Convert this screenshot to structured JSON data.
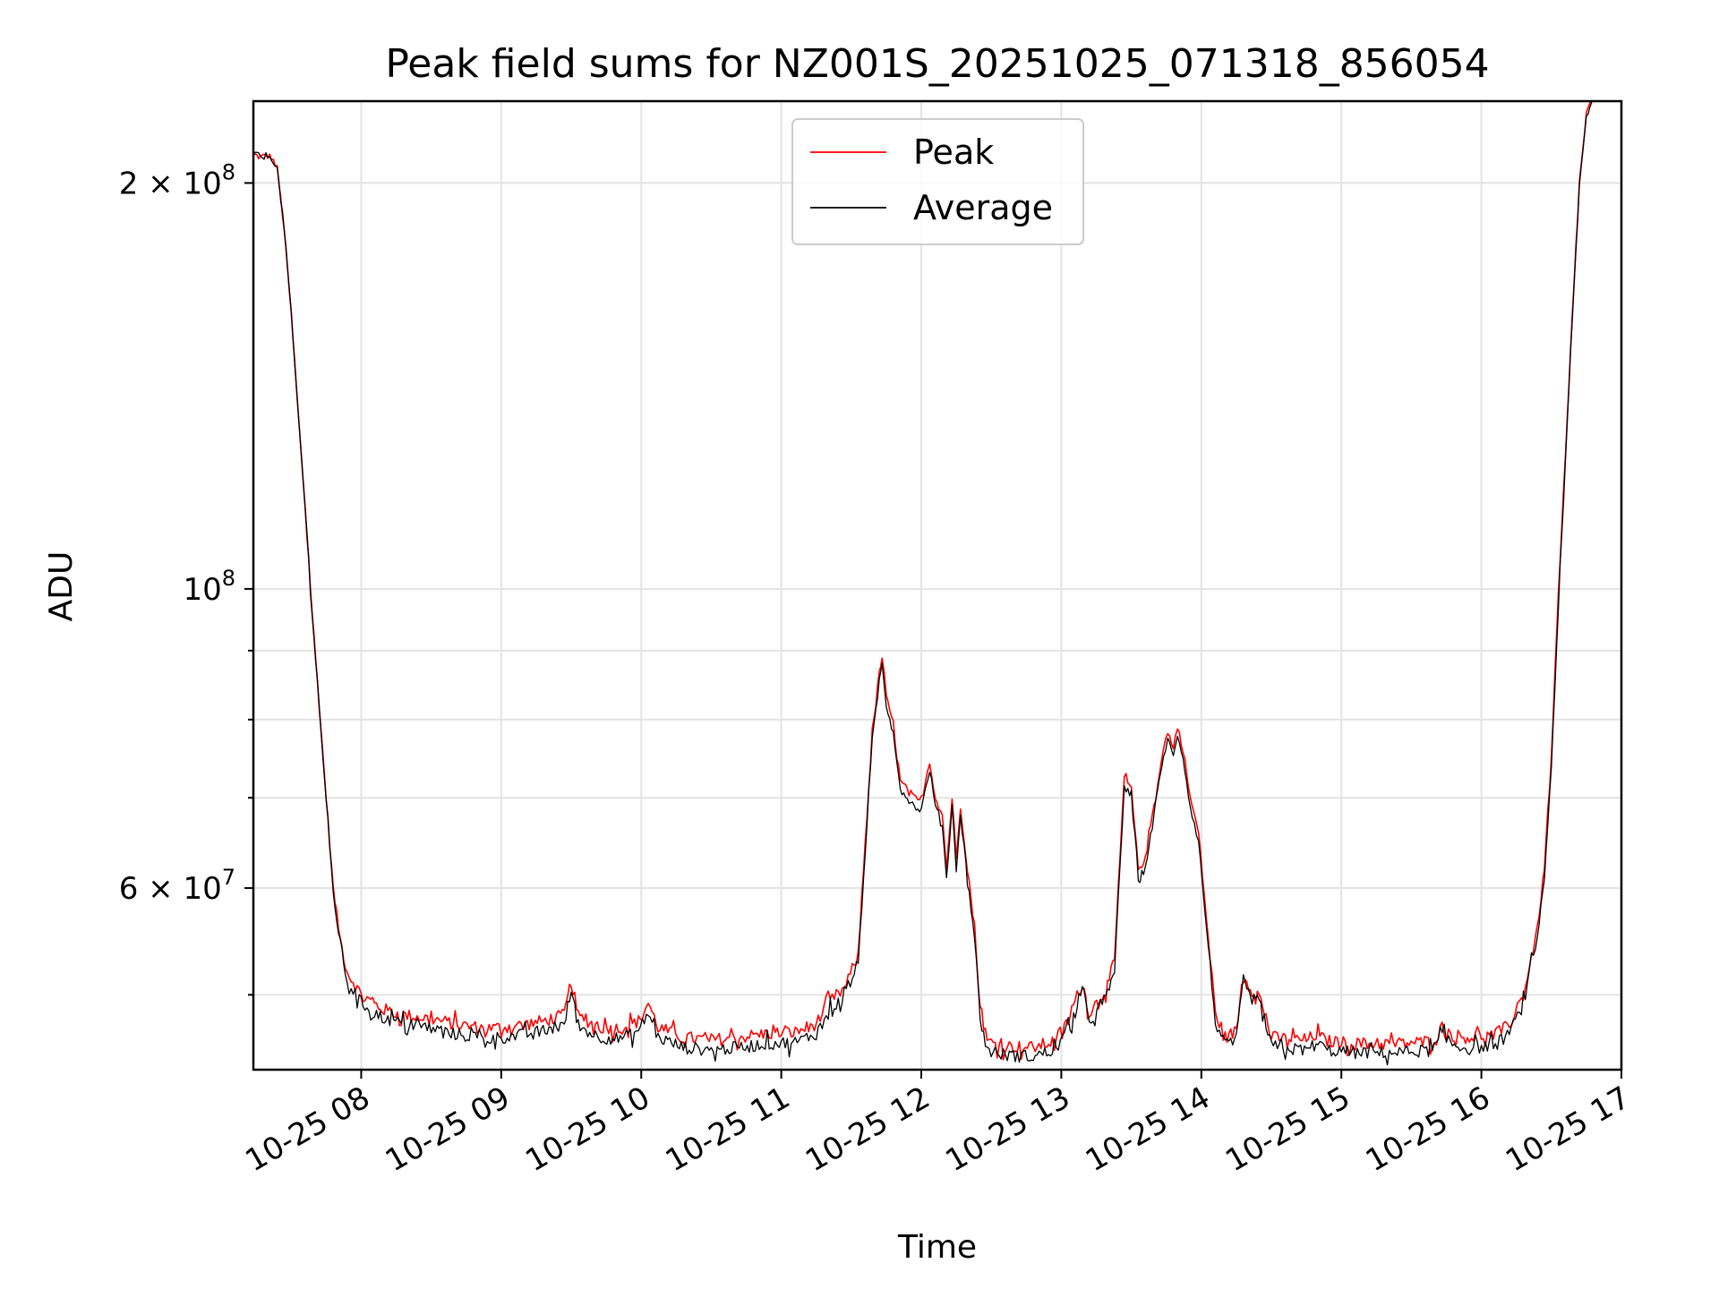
{
  "chart_data": {
    "type": "line",
    "title": "Peak field sums for NZ001S_20251025_071318_856054",
    "xlabel": "Time",
    "ylabel": "ADU",
    "yscale": "log",
    "ylim": [
      44000000,
      230000000
    ],
    "xlim": [
      7.23,
      17.0
    ],
    "grid": true,
    "legend_position": "top-center",
    "x_ticks": [
      {
        "value": 8,
        "label": "10-25 08"
      },
      {
        "value": 9,
        "label": "10-25 09"
      },
      {
        "value": 10,
        "label": "10-25 10"
      },
      {
        "value": 11,
        "label": "10-25 11"
      },
      {
        "value": 12,
        "label": "10-25 12"
      },
      {
        "value": 13,
        "label": "10-25 13"
      },
      {
        "value": 14,
        "label": "10-25 14"
      },
      {
        "value": 15,
        "label": "10-25 15"
      },
      {
        "value": 16,
        "label": "10-25 16"
      },
      {
        "value": 17,
        "label": "10-25 17"
      }
    ],
    "y_major_ticks": [
      {
        "value": 200000000,
        "base": "2 × 10",
        "exp": "8"
      },
      {
        "value": 100000000,
        "base": "10",
        "exp": "8"
      },
      {
        "value": 60000000,
        "base": "6 × 10",
        "exp": "7"
      }
    ],
    "y_minor_grid": [
      50000000,
      70000000,
      80000000,
      90000000
    ],
    "x_time_unit": "hour of 2025-10-25",
    "series": [
      {
        "name": "Peak",
        "color": "#ff0000",
        "points": [
          [
            7.23,
            210000000
          ],
          [
            7.28,
            209000000
          ],
          [
            7.32,
            209500000
          ],
          [
            7.36,
            209000000
          ],
          [
            7.4,
            205000000
          ],
          [
            7.45,
            185000000
          ],
          [
            7.5,
            160000000
          ],
          [
            7.55,
            135000000
          ],
          [
            7.6,
            115000000
          ],
          [
            7.65,
            96000000
          ],
          [
            7.7,
            82000000
          ],
          [
            7.75,
            70000000
          ],
          [
            7.8,
            60000000
          ],
          [
            7.85,
            55000000
          ],
          [
            7.9,
            52000000
          ],
          [
            8.0,
            50000000
          ],
          [
            8.15,
            48800000
          ],
          [
            8.3,
            48300000
          ],
          [
            8.5,
            48000000
          ],
          [
            8.7,
            47500000
          ],
          [
            8.9,
            47200000
          ],
          [
            9.1,
            47400000
          ],
          [
            9.3,
            47800000
          ],
          [
            9.45,
            48300000
          ],
          [
            9.5,
            51200000
          ],
          [
            9.55,
            48200000
          ],
          [
            9.7,
            47300000
          ],
          [
            9.85,
            47200000
          ],
          [
            9.98,
            47800000
          ],
          [
            10.05,
            49300000
          ],
          [
            10.12,
            47300000
          ],
          [
            10.3,
            46500000
          ],
          [
            10.5,
            46300000
          ],
          [
            10.7,
            46500000
          ],
          [
            10.9,
            46800000
          ],
          [
            11.1,
            46900000
          ],
          [
            11.25,
            47600000
          ],
          [
            11.35,
            49500000
          ],
          [
            11.45,
            50500000
          ],
          [
            11.55,
            53500000
          ],
          [
            11.6,
            65000000
          ],
          [
            11.65,
            78000000
          ],
          [
            11.7,
            86500000
          ],
          [
            11.72,
            89000000
          ],
          [
            11.75,
            83000000
          ],
          [
            11.8,
            79500000
          ],
          [
            11.85,
            72000000
          ],
          [
            11.9,
            71000000
          ],
          [
            11.95,
            70000000
          ],
          [
            12.0,
            69500000
          ],
          [
            12.03,
            72000000
          ],
          [
            12.06,
            74500000
          ],
          [
            12.1,
            70000000
          ],
          [
            12.15,
            68000000
          ],
          [
            12.18,
            62000000
          ],
          [
            12.22,
            70000000
          ],
          [
            12.25,
            63000000
          ],
          [
            12.28,
            69000000
          ],
          [
            12.33,
            62000000
          ],
          [
            12.38,
            56000000
          ],
          [
            12.42,
            49000000
          ],
          [
            12.47,
            46200000
          ],
          [
            12.6,
            45800000
          ],
          [
            12.8,
            45700000
          ],
          [
            12.95,
            46200000
          ],
          [
            13.05,
            47800000
          ],
          [
            13.1,
            49500000
          ],
          [
            13.15,
            51000000
          ],
          [
            13.2,
            48500000
          ],
          [
            13.28,
            49800000
          ],
          [
            13.33,
            50800000
          ],
          [
            13.38,
            53000000
          ],
          [
            13.45,
            72500000
          ],
          [
            13.5,
            71000000
          ],
          [
            13.55,
            62000000
          ],
          [
            13.6,
            63000000
          ],
          [
            13.65,
            68000000
          ],
          [
            13.7,
            73000000
          ],
          [
            13.73,
            76000000
          ],
          [
            13.76,
            78500000
          ],
          [
            13.8,
            76000000
          ],
          [
            13.83,
            79000000
          ],
          [
            13.87,
            76000000
          ],
          [
            13.92,
            70000000
          ],
          [
            13.98,
            66000000
          ],
          [
            14.05,
            55000000
          ],
          [
            14.1,
            48500000
          ],
          [
            14.17,
            46500000
          ],
          [
            14.25,
            47000000
          ],
          [
            14.3,
            52000000
          ],
          [
            14.35,
            50500000
          ],
          [
            14.4,
            50200000
          ],
          [
            14.45,
            48500000
          ],
          [
            14.5,
            46500000
          ],
          [
            14.6,
            46400000
          ],
          [
            14.75,
            46300000
          ],
          [
            14.82,
            46700000
          ],
          [
            14.9,
            46200000
          ],
          [
            15.1,
            46000000
          ],
          [
            15.4,
            46000000
          ],
          [
            15.65,
            46200000
          ],
          [
            15.72,
            47300000
          ],
          [
            15.78,
            46700000
          ],
          [
            15.9,
            46500000
          ],
          [
            16.1,
            46700000
          ],
          [
            16.2,
            47500000
          ],
          [
            16.3,
            50000000
          ],
          [
            16.4,
            56000000
          ],
          [
            16.45,
            62000000
          ],
          [
            16.5,
            75000000
          ],
          [
            16.55,
            99000000
          ],
          [
            16.6,
            125000000
          ],
          [
            16.65,
            160000000
          ],
          [
            16.7,
            200000000
          ],
          [
            16.75,
            225000000
          ],
          [
            16.8,
            232000000
          ]
        ]
      },
      {
        "name": "Average",
        "color": "#000000",
        "points": [
          [
            7.23,
            210000000
          ],
          [
            7.28,
            209000000
          ],
          [
            7.32,
            209500000
          ],
          [
            7.36,
            209000000
          ],
          [
            7.4,
            205000000
          ],
          [
            7.45,
            185000000
          ],
          [
            7.5,
            160000000
          ],
          [
            7.55,
            135000000
          ],
          [
            7.6,
            115000000
          ],
          [
            7.65,
            96000000
          ],
          [
            7.7,
            82000000
          ],
          [
            7.75,
            69500000
          ],
          [
            7.8,
            59500000
          ],
          [
            7.85,
            54500000
          ],
          [
            7.9,
            51200000
          ],
          [
            8.0,
            49300000
          ],
          [
            8.15,
            48100000
          ],
          [
            8.3,
            47600000
          ],
          [
            8.5,
            47200000
          ],
          [
            8.7,
            46700000
          ],
          [
            8.9,
            46400000
          ],
          [
            9.1,
            46600000
          ],
          [
            9.3,
            47000000
          ],
          [
            9.45,
            47500000
          ],
          [
            9.5,
            50500000
          ],
          [
            9.55,
            47400000
          ],
          [
            9.7,
            46500000
          ],
          [
            9.85,
            46400000
          ],
          [
            9.98,
            47000000
          ],
          [
            10.05,
            48500000
          ],
          [
            10.12,
            46500000
          ],
          [
            10.3,
            45700000
          ],
          [
            10.5,
            45500000
          ],
          [
            10.7,
            45700000
          ],
          [
            10.9,
            46000000
          ],
          [
            11.1,
            46100000
          ],
          [
            11.25,
            46800000
          ],
          [
            11.35,
            48800000
          ],
          [
            11.45,
            49800000
          ],
          [
            11.55,
            52800000
          ],
          [
            11.6,
            64000000
          ],
          [
            11.65,
            77000000
          ],
          [
            11.7,
            85500000
          ],
          [
            11.72,
            88000000
          ],
          [
            11.75,
            82000000
          ],
          [
            11.8,
            78500000
          ],
          [
            11.85,
            71000000
          ],
          [
            11.9,
            70000000
          ],
          [
            11.95,
            69000000
          ],
          [
            12.0,
            68500000
          ],
          [
            12.03,
            71000000
          ],
          [
            12.06,
            73500000
          ],
          [
            12.1,
            69000000
          ],
          [
            12.15,
            67000000
          ],
          [
            12.18,
            61000000
          ],
          [
            12.22,
            69000000
          ],
          [
            12.25,
            62000000
          ],
          [
            12.28,
            68000000
          ],
          [
            12.33,
            61000000
          ],
          [
            12.38,
            55200000
          ],
          [
            12.42,
            48300000
          ],
          [
            12.47,
            45500000
          ],
          [
            12.6,
            45100000
          ],
          [
            12.8,
            45000000
          ],
          [
            12.95,
            45500000
          ],
          [
            13.05,
            47000000
          ],
          [
            13.1,
            48700000
          ],
          [
            13.15,
            50200000
          ],
          [
            13.2,
            47800000
          ],
          [
            13.28,
            49000000
          ],
          [
            13.33,
            50000000
          ],
          [
            13.38,
            52200000
          ],
          [
            13.45,
            71500000
          ],
          [
            13.5,
            70000000
          ],
          [
            13.55,
            61000000
          ],
          [
            13.6,
            62000000
          ],
          [
            13.65,
            67000000
          ],
          [
            13.7,
            72000000
          ],
          [
            13.73,
            75000000
          ],
          [
            13.76,
            77500000
          ],
          [
            13.8,
            75000000
          ],
          [
            13.83,
            78000000
          ],
          [
            13.87,
            75000000
          ],
          [
            13.92,
            69000000
          ],
          [
            13.98,
            65000000
          ],
          [
            14.05,
            54200000
          ],
          [
            14.1,
            47800000
          ],
          [
            14.17,
            45800000
          ],
          [
            14.25,
            46300000
          ],
          [
            14.3,
            51200000
          ],
          [
            14.35,
            49800000
          ],
          [
            14.4,
            49500000
          ],
          [
            14.45,
            47800000
          ],
          [
            14.5,
            45800000
          ],
          [
            14.6,
            45600000
          ],
          [
            14.75,
            45500000
          ],
          [
            14.82,
            46000000
          ],
          [
            14.9,
            45500000
          ],
          [
            15.1,
            45300000
          ],
          [
            15.4,
            45300000
          ],
          [
            15.65,
            45500000
          ],
          [
            15.72,
            46600000
          ],
          [
            15.78,
            46000000
          ],
          [
            15.9,
            45600000
          ],
          [
            16.1,
            45900000
          ],
          [
            16.2,
            46800000
          ],
          [
            16.3,
            49200000
          ],
          [
            16.4,
            55200000
          ],
          [
            16.45,
            61000000
          ],
          [
            16.5,
            74000000
          ],
          [
            16.55,
            97000000
          ],
          [
            16.6,
            124000000
          ],
          [
            16.65,
            159000000
          ],
          [
            16.7,
            199000000
          ],
          [
            16.75,
            224000000
          ],
          [
            16.8,
            232000000
          ]
        ]
      }
    ]
  }
}
